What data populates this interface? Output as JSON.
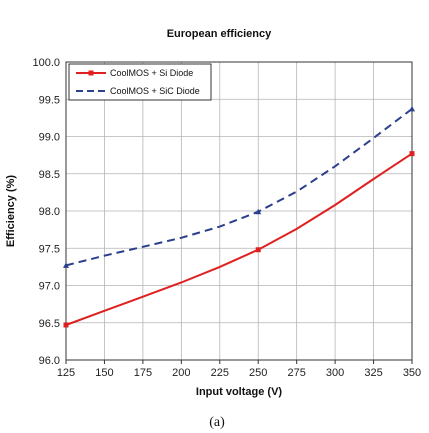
{
  "chart_data": {
    "type": "line",
    "title": "European efficiency",
    "xlabel": "Input voltage (V)",
    "ylabel": "Efficiency (%)",
    "caption": "(a)",
    "xlim": [
      125,
      350
    ],
    "ylim": [
      96.0,
      100.0
    ],
    "x_ticks": [
      "125",
      "150",
      "175",
      "200",
      "225",
      "250",
      "275",
      "300",
      "325",
      "350"
    ],
    "y_ticks": [
      "96.0",
      "96.5",
      "97.0",
      "97.5",
      "98.0",
      "98.5",
      "99.0",
      "99.5",
      "100.0"
    ],
    "grid": true,
    "legend_position": "top-left",
    "series": [
      {
        "name": "CoolMOS + Si Diode",
        "color": "#e02020",
        "style": "solid-square-markers",
        "x": [
          125,
          150,
          175,
          200,
          225,
          250,
          275,
          300,
          325,
          350
        ],
        "y": [
          96.47,
          96.66,
          96.85,
          97.04,
          97.25,
          97.48,
          97.76,
          98.08,
          98.43,
          98.77
        ]
      },
      {
        "name": "CoolMOS + SiC Diode",
        "color": "#2c3f8c",
        "style": "dashed-triangle-markers",
        "x": [
          125,
          150,
          175,
          200,
          225,
          250,
          275,
          300,
          325,
          350
        ],
        "y": [
          97.27,
          97.4,
          97.52,
          97.64,
          97.79,
          97.99,
          98.26,
          98.6,
          98.98,
          99.37
        ]
      }
    ]
  }
}
